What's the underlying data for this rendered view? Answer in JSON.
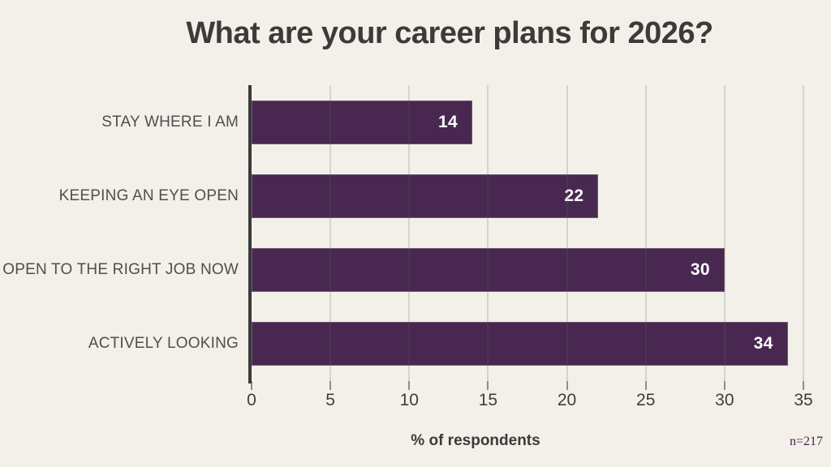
{
  "title": "What are your career plans for 2026?",
  "footnote": "n=217",
  "chart_data": {
    "type": "bar",
    "orientation": "horizontal",
    "title": "What are your career plans for 2026?",
    "categories": [
      "STAY WHERE I AM",
      "KEEPING AN EYE OPEN",
      "OPEN TO THE RIGHT JOB NOW",
      "ACTIVELY LOOKING"
    ],
    "values": [
      14,
      22,
      30,
      34
    ],
    "xlabel": "% of respondents",
    "ylabel": "",
    "xlim": [
      0,
      35
    ],
    "xticks": [
      0,
      5,
      10,
      15,
      20,
      25,
      30,
      35
    ],
    "grid": true,
    "legend": false,
    "value_labels_inside_bars": true,
    "annotation": "n=217"
  },
  "colors": {
    "background": "#f3f0e9",
    "bar": "#482850",
    "title_text": "#3b3b3b",
    "category_text": "#4f4f4f",
    "tick_text": "#3d3d3d",
    "axis_line": "#3a3a3a",
    "gridline": "rgba(100,95,82,0.20)",
    "value_text": "#ffffff",
    "footnote_text": "#461e50"
  }
}
